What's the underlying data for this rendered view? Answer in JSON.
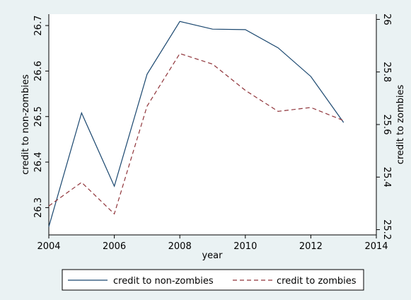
{
  "chart_data": {
    "type": "line",
    "xlabel": "year",
    "ylabel_left": "credit to non-zombies",
    "ylabel_right": "credit to zombies",
    "x_ticks": [
      2004,
      2006,
      2008,
      2010,
      2012,
      2014
    ],
    "y_left_ticks": [
      26.3,
      26.4,
      26.5,
      26.6,
      26.7
    ],
    "y_right_ticks": [
      25.2,
      25.4,
      25.6,
      25.8,
      26
    ],
    "xlim": [
      2004,
      2014
    ],
    "ylim_left": [
      26.24,
      26.725
    ],
    "ylim_right": [
      25.18,
      26.02
    ],
    "grid": false,
    "legend_position": "bottom",
    "background_color": "#eaf2f3",
    "plot_background": "#ffffff",
    "series": [
      {
        "name": "credit to non-zombies",
        "axis": "left",
        "color": "#1a476f",
        "style": "solid",
        "x": [
          2004,
          2005,
          2006,
          2007,
          2008,
          2009,
          2010,
          2011,
          2012,
          2013
        ],
        "y": [
          26.258,
          26.508,
          26.347,
          26.593,
          26.709,
          26.692,
          26.691,
          26.651,
          26.588,
          26.487
        ]
      },
      {
        "name": "credit to zombies",
        "axis": "right",
        "color": "#90353b",
        "style": "dashed",
        "x": [
          2004,
          2005,
          2006,
          2007,
          2008,
          2009,
          2010,
          2011,
          2012,
          2013
        ],
        "y": [
          25.29,
          25.38,
          25.26,
          25.67,
          25.87,
          25.83,
          25.73,
          25.65,
          25.665,
          25.615
        ]
      }
    ]
  }
}
